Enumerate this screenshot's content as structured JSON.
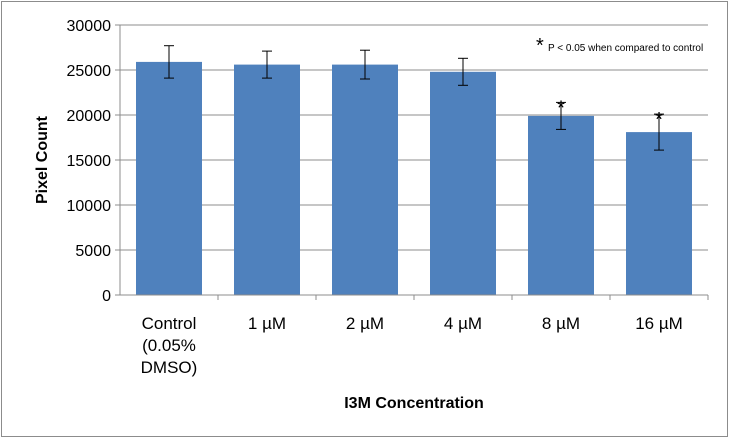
{
  "chart_data": {
    "type": "bar",
    "categories": [
      [
        "Control",
        "(0.05%",
        "DMSO)"
      ],
      [
        "1 µM"
      ],
      [
        "2 µM"
      ],
      [
        "4 µM"
      ],
      [
        "8 µM"
      ],
      [
        "16 µM"
      ]
    ],
    "values": [
      25900,
      25600,
      25600,
      24800,
      19900,
      18100
    ],
    "error": [
      1800,
      1500,
      1600,
      1500,
      1500,
      2000
    ],
    "significant": [
      false,
      false,
      false,
      false,
      true,
      true
    ],
    "significance_symbol": "*",
    "xlabel": "I3M Concentration",
    "ylabel": "Pixel Count",
    "ylim": [
      0,
      30000
    ],
    "yticks": [
      0,
      5000,
      10000,
      15000,
      20000,
      25000,
      30000
    ],
    "grid": true,
    "bar_color": "#4f81bd",
    "annotation": {
      "symbol": "*",
      "text": "P < 0.05 when compared to control"
    }
  }
}
